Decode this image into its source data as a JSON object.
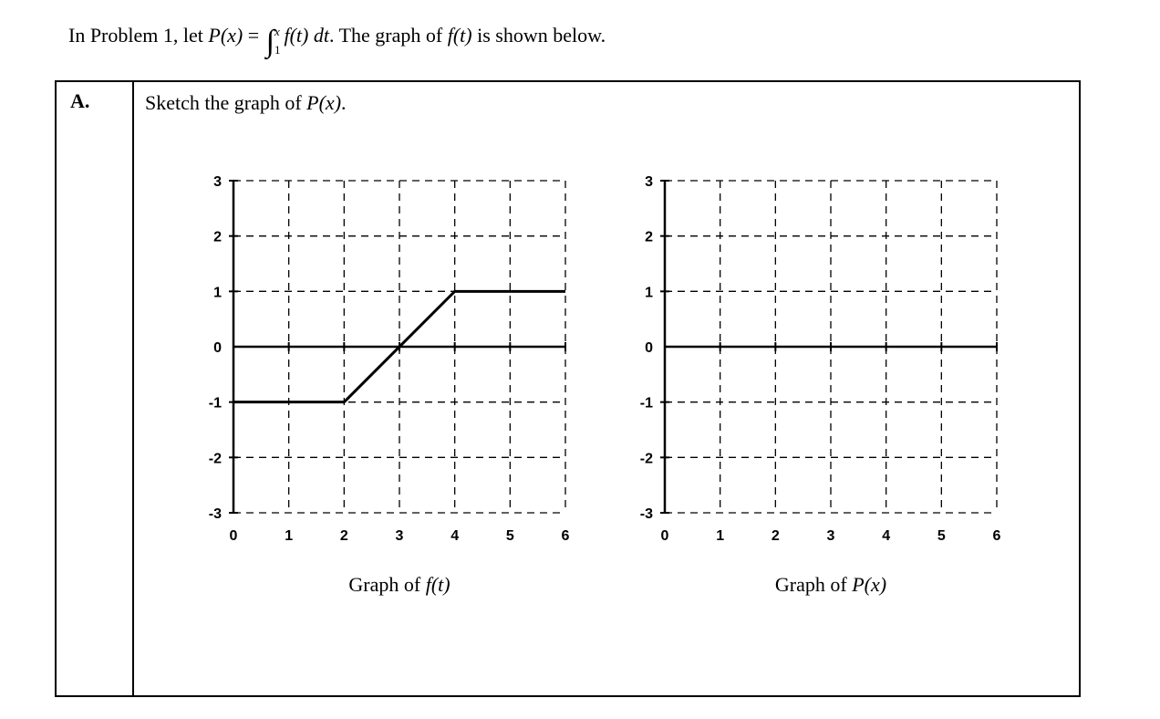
{
  "statement": {
    "before": "In Problem 1, let ",
    "func": "P(x)",
    "equals": " = ",
    "integral_sign": "∫",
    "integral_upper": "x",
    "integral_lower": "1",
    "integrand": "f(t) dt",
    "after": ". The graph of ",
    "func2": "f(t)",
    "tail": " is shown below."
  },
  "table": {
    "row_label": "A.",
    "instruction_prefix": "Sketch the graph of ",
    "instruction_math": "P(x)",
    "instruction_suffix": "."
  },
  "chart_data": [
    {
      "type": "line",
      "caption_prefix": "Graph of ",
      "caption_math": "f(t)",
      "x": [
        0,
        2,
        4,
        6
      ],
      "y": [
        -1,
        -1,
        1,
        1
      ],
      "xlim": [
        0,
        6
      ],
      "ylim": [
        -3,
        3
      ],
      "xticks": [
        0,
        1,
        2,
        3,
        4,
        5,
        6
      ],
      "yticks": [
        3,
        2,
        1,
        0,
        -1,
        -2,
        -3
      ],
      "grid": "dashed",
      "legend": "none"
    },
    {
      "type": "line",
      "caption_prefix": "Graph of ",
      "caption_math": "P(x)",
      "x": [],
      "y": [],
      "xlim": [
        0,
        6
      ],
      "ylim": [
        -3,
        3
      ],
      "xticks": [
        0,
        1,
        2,
        3,
        4,
        5,
        6
      ],
      "yticks": [
        3,
        2,
        1,
        0,
        -1,
        -2,
        -3
      ],
      "grid": "dashed",
      "legend": "none"
    }
  ]
}
